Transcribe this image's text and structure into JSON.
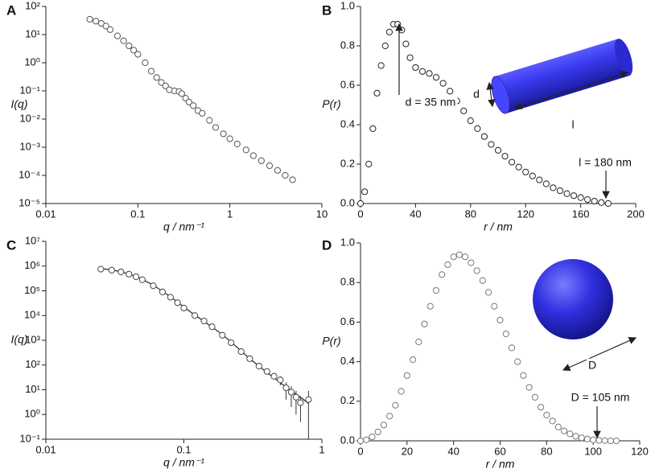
{
  "chart_data": [
    {
      "type": "scatter",
      "panel": "A",
      "x_label": "q / nm⁻¹",
      "y_label": "I(q)",
      "xlog": true,
      "ylog": true,
      "xlim": [
        0.01,
        10
      ],
      "xticks": [
        0.01,
        0.1,
        1,
        10
      ],
      "ylim": [
        1e-05,
        100
      ],
      "yticks": [
        {
          "value": 1e-05,
          "label": "10⁻⁵"
        },
        {
          "value": 0.0001,
          "label": "10⁻⁴"
        },
        {
          "value": 0.001,
          "label": "10⁻³"
        },
        {
          "value": 0.01,
          "label": "10⁻²"
        },
        {
          "value": 0.1,
          "label": "10⁻¹"
        },
        {
          "value": 1,
          "label": "10⁰"
        },
        {
          "value": 10,
          "label": "10¹"
        },
        {
          "value": 100,
          "label": "10²"
        }
      ],
      "x": [
        0.03,
        0.035,
        0.04,
        0.045,
        0.05,
        0.06,
        0.07,
        0.08,
        0.09,
        0.1,
        0.12,
        0.14,
        0.16,
        0.18,
        0.2,
        0.22,
        0.25,
        0.28,
        0.3,
        0.33,
        0.36,
        0.4,
        0.45,
        0.5,
        0.6,
        0.7,
        0.85,
        1,
        1.2,
        1.5,
        1.8,
        2.2,
        2.7,
        3.3,
        4,
        4.8
      ],
      "values": [
        35,
        30,
        25,
        20,
        15,
        9,
        6,
        4,
        2.8,
        2,
        1,
        0.5,
        0.3,
        0.2,
        0.15,
        0.11,
        0.1,
        0.095,
        0.08,
        0.055,
        0.04,
        0.03,
        0.02,
        0.016,
        0.009,
        0.005,
        0.003,
        0.002,
        0.0013,
        0.0008,
        0.0005,
        0.00033,
        0.00022,
        0.00015,
        0.0001,
        7e-05
      ],
      "color": "#555555"
    },
    {
      "type": "scatter",
      "panel": "B",
      "x_label": "r / nm",
      "y_label": "P(r)",
      "xlim": [
        0,
        200
      ],
      "xticks": [
        0,
        40,
        80,
        120,
        160,
        200
      ],
      "ylim": [
        0,
        1
      ],
      "yticks": [
        {
          "value": 0,
          "label": "0.0"
        },
        0.2,
        0.4,
        0.6,
        0.8,
        {
          "value": 1,
          "label": "1.0"
        }
      ],
      "x": [
        0,
        3,
        6,
        9,
        12,
        15,
        18,
        21,
        24,
        27,
        30,
        33,
        36,
        40,
        45,
        50,
        55,
        60,
        65,
        70,
        75,
        80,
        85,
        90,
        95,
        100,
        105,
        110,
        115,
        120,
        125,
        130,
        135,
        140,
        145,
        150,
        155,
        160,
        165,
        170,
        175,
        180
      ],
      "values": [
        0,
        0.06,
        0.2,
        0.38,
        0.56,
        0.7,
        0.8,
        0.87,
        0.91,
        0.91,
        0.88,
        0.81,
        0.74,
        0.69,
        0.67,
        0.66,
        0.64,
        0.61,
        0.57,
        0.52,
        0.47,
        0.42,
        0.38,
        0.34,
        0.3,
        0.27,
        0.24,
        0.21,
        0.185,
        0.16,
        0.14,
        0.12,
        0.1,
        0.08,
        0.065,
        0.05,
        0.04,
        0.03,
        0.02,
        0.012,
        0.005,
        0
      ],
      "annotations": [
        "d = 35 nm",
        "l = 180 nm",
        "d",
        "l"
      ],
      "color": "#222222"
    },
    {
      "type": "scatter",
      "panel": "C",
      "x_label": "q / nm⁻¹",
      "y_label": "I(q)",
      "xlog": true,
      "ylog": true,
      "xlim": [
        0.01,
        1
      ],
      "xticks": [
        0.01,
        0.1,
        1
      ],
      "ylim": [
        0.1,
        10000000
      ],
      "yticks": [
        {
          "value": 0.1,
          "label": "10⁻¹"
        },
        {
          "value": 1,
          "label": "10⁰"
        },
        {
          "value": 10,
          "label": "10¹"
        },
        {
          "value": 100,
          "label": "10²"
        },
        {
          "value": 1000,
          "label": "10³"
        },
        {
          "value": 10000,
          "label": "10⁴"
        },
        {
          "value": 100000,
          "label": "10⁵"
        },
        {
          "value": 1000000,
          "label": "10⁶"
        },
        {
          "value": 10000000,
          "label": "10⁷"
        }
      ],
      "x": [
        0.025,
        0.03,
        0.035,
        0.04,
        0.045,
        0.05,
        0.06,
        0.07,
        0.08,
        0.09,
        0.1,
        0.12,
        0.14,
        0.16,
        0.19,
        0.22,
        0.26,
        0.3,
        0.35,
        0.4,
        0.45,
        0.5,
        0.55,
        0.6,
        0.65,
        0.7,
        0.8
      ],
      "values": [
        750000,
        680000,
        580000,
        470000,
        370000,
        280000,
        160000,
        90000,
        55000,
        33000,
        20000,
        10000,
        6000,
        3500,
        1600,
        800,
        350,
        180,
        90,
        55,
        35,
        25,
        12,
        8,
        5,
        3,
        4
      ],
      "errors": [
        null,
        null,
        null,
        null,
        null,
        null,
        null,
        null,
        null,
        null,
        null,
        null,
        null,
        null,
        null,
        null,
        null,
        null,
        null,
        null,
        null,
        10,
        8,
        6,
        4,
        2.5,
        5
      ],
      "fit": [
        800000,
        700000,
        590000,
        480000,
        380000,
        290000,
        170000,
        95000,
        57000,
        35000,
        22000,
        10500,
        5800,
        3400,
        1700,
        850,
        370,
        180,
        90,
        50,
        30,
        19,
        13,
        9,
        6.5,
        5,
        2.8
      ],
      "color": "#444444"
    },
    {
      "type": "scatter",
      "panel": "D",
      "x_label": "r / nm",
      "y_label": "P(r)",
      "xlim": [
        0,
        120
      ],
      "xticks": [
        0,
        20,
        40,
        60,
        80,
        100,
        120
      ],
      "ylim": [
        0,
        1
      ],
      "yticks": [
        {
          "value": 0,
          "label": "0.0"
        },
        0.2,
        0.4,
        0.6,
        0.8,
        {
          "value": 1,
          "label": "1.0"
        }
      ],
      "x": [
        0,
        2.5,
        5,
        7.5,
        10,
        12.5,
        15,
        17.5,
        20,
        22.5,
        25,
        27.5,
        30,
        32.5,
        35,
        37.5,
        40,
        42.5,
        45,
        47.5,
        50,
        52.5,
        55,
        57.5,
        60,
        62.5,
        65,
        67.5,
        70,
        72.5,
        75,
        77.5,
        80,
        82.5,
        85,
        87.5,
        90,
        92.5,
        95,
        97.5,
        100,
        102.5,
        105,
        107.5,
        110
      ],
      "values": [
        0,
        0.005,
        0.02,
        0.045,
        0.08,
        0.125,
        0.18,
        0.25,
        0.33,
        0.41,
        0.5,
        0.59,
        0.68,
        0.76,
        0.84,
        0.89,
        0.93,
        0.94,
        0.93,
        0.9,
        0.86,
        0.81,
        0.75,
        0.68,
        0.61,
        0.54,
        0.47,
        0.4,
        0.33,
        0.27,
        0.22,
        0.17,
        0.13,
        0.1,
        0.07,
        0.05,
        0.035,
        0.023,
        0.015,
        0.009,
        0.005,
        0.002,
        0.001,
        0,
        0
      ],
      "annotations": [
        "D",
        "D = 105 nm"
      ],
      "color": "#777777"
    }
  ]
}
